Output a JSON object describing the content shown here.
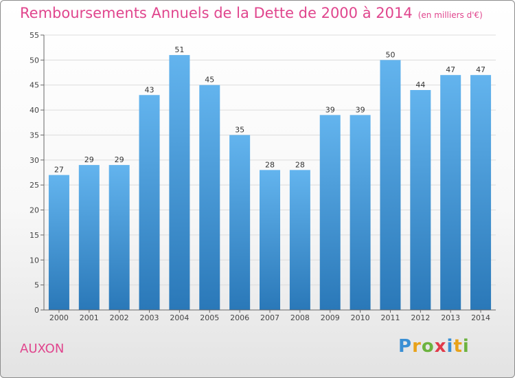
{
  "header": {
    "title": "Remboursements Annuels de la Dette de 2000 à 2014",
    "unit": "(en milliers d'€)"
  },
  "commune": "AUXON",
  "logo": {
    "letters": [
      "P",
      "r",
      "o",
      "x",
      "i",
      "t",
      "i"
    ],
    "colors": [
      "#3a8fd4",
      "#e8a21a",
      "#6cb33f",
      "#e03a4a",
      "#3a8fd4",
      "#e8a21a",
      "#6cb33f"
    ]
  },
  "colors": {
    "title": "#e0458d",
    "bar_top": "#63b4ee",
    "bar_bottom": "#2a78b8",
    "grid": "#dcdcdc"
  },
  "chart_data": {
    "type": "bar",
    "title": "Remboursements Annuels de la Dette de 2000 à 2014",
    "subtitle": "(en milliers d'€)",
    "xlabel": "",
    "ylabel": "",
    "categories": [
      "2000",
      "2001",
      "2002",
      "2003",
      "2004",
      "2005",
      "2006",
      "2007",
      "2008",
      "2009",
      "2010",
      "2011",
      "2012",
      "2013",
      "2014"
    ],
    "values": [
      27,
      29,
      29,
      43,
      51,
      45,
      35,
      28,
      28,
      39,
      39,
      50,
      44,
      47,
      47
    ],
    "ylim": [
      0,
      55
    ],
    "yticks": [
      0,
      5,
      10,
      15,
      20,
      25,
      30,
      35,
      40,
      45,
      50,
      55
    ],
    "grid": true,
    "legend": "none"
  }
}
